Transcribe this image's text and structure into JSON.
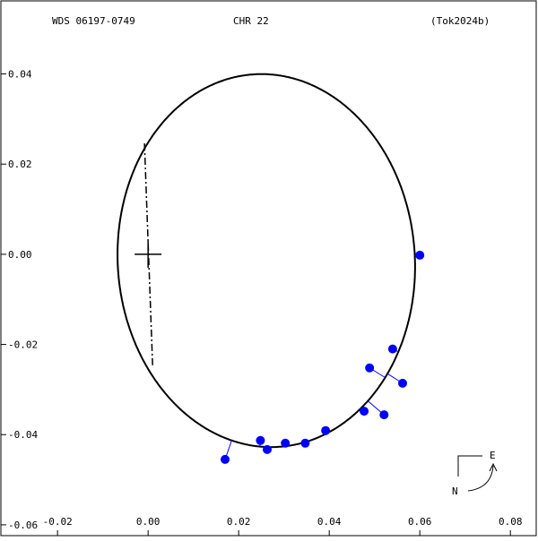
{
  "chart_data": {
    "type": "scatter",
    "header": [
      "WDS 06197-0749",
      "CHR  22",
      "(Tok2024b)"
    ],
    "x": [
      0.06,
      0.054,
      0.0562,
      0.0489,
      0.0521,
      0.0477,
      0.0392,
      0.0347,
      0.0303,
      0.0263,
      0.0248,
      0.017
    ],
    "y": [
      -0.0002,
      -0.021,
      -0.0286,
      -0.0252,
      -0.0356,
      -0.0348,
      -0.0391,
      -0.0419,
      -0.0419,
      -0.0433,
      -0.0413,
      -0.0455
    ],
    "color": "#0000ff",
    "orbit": {
      "center": [
        0.0261,
        -0.0014
      ],
      "semi_axes": [
        0.0414,
        0.0328
      ],
      "angle": 94
    },
    "node_line": [
      [
        -0.0008,
        0.0246
      ],
      [
        0.001,
        -0.0246
      ]
    ],
    "primary": [
      0,
      0
    ],
    "xlim": [
      -0.0327,
      0.0857
    ],
    "ylim": [
      -0.0624,
      0.0564
    ],
    "xticks": [
      -0.02,
      {
        "value": 0,
        "label": "0.00"
      },
      0.02,
      0.04,
      0.06,
      0.08
    ],
    "yticks": [
      0.04,
      0.02,
      {
        "value": 0,
        "label": "0.00"
      },
      -0.02,
      -0.04,
      -0.06
    ],
    "compass": [
      "E",
      "N"
    ]
  }
}
